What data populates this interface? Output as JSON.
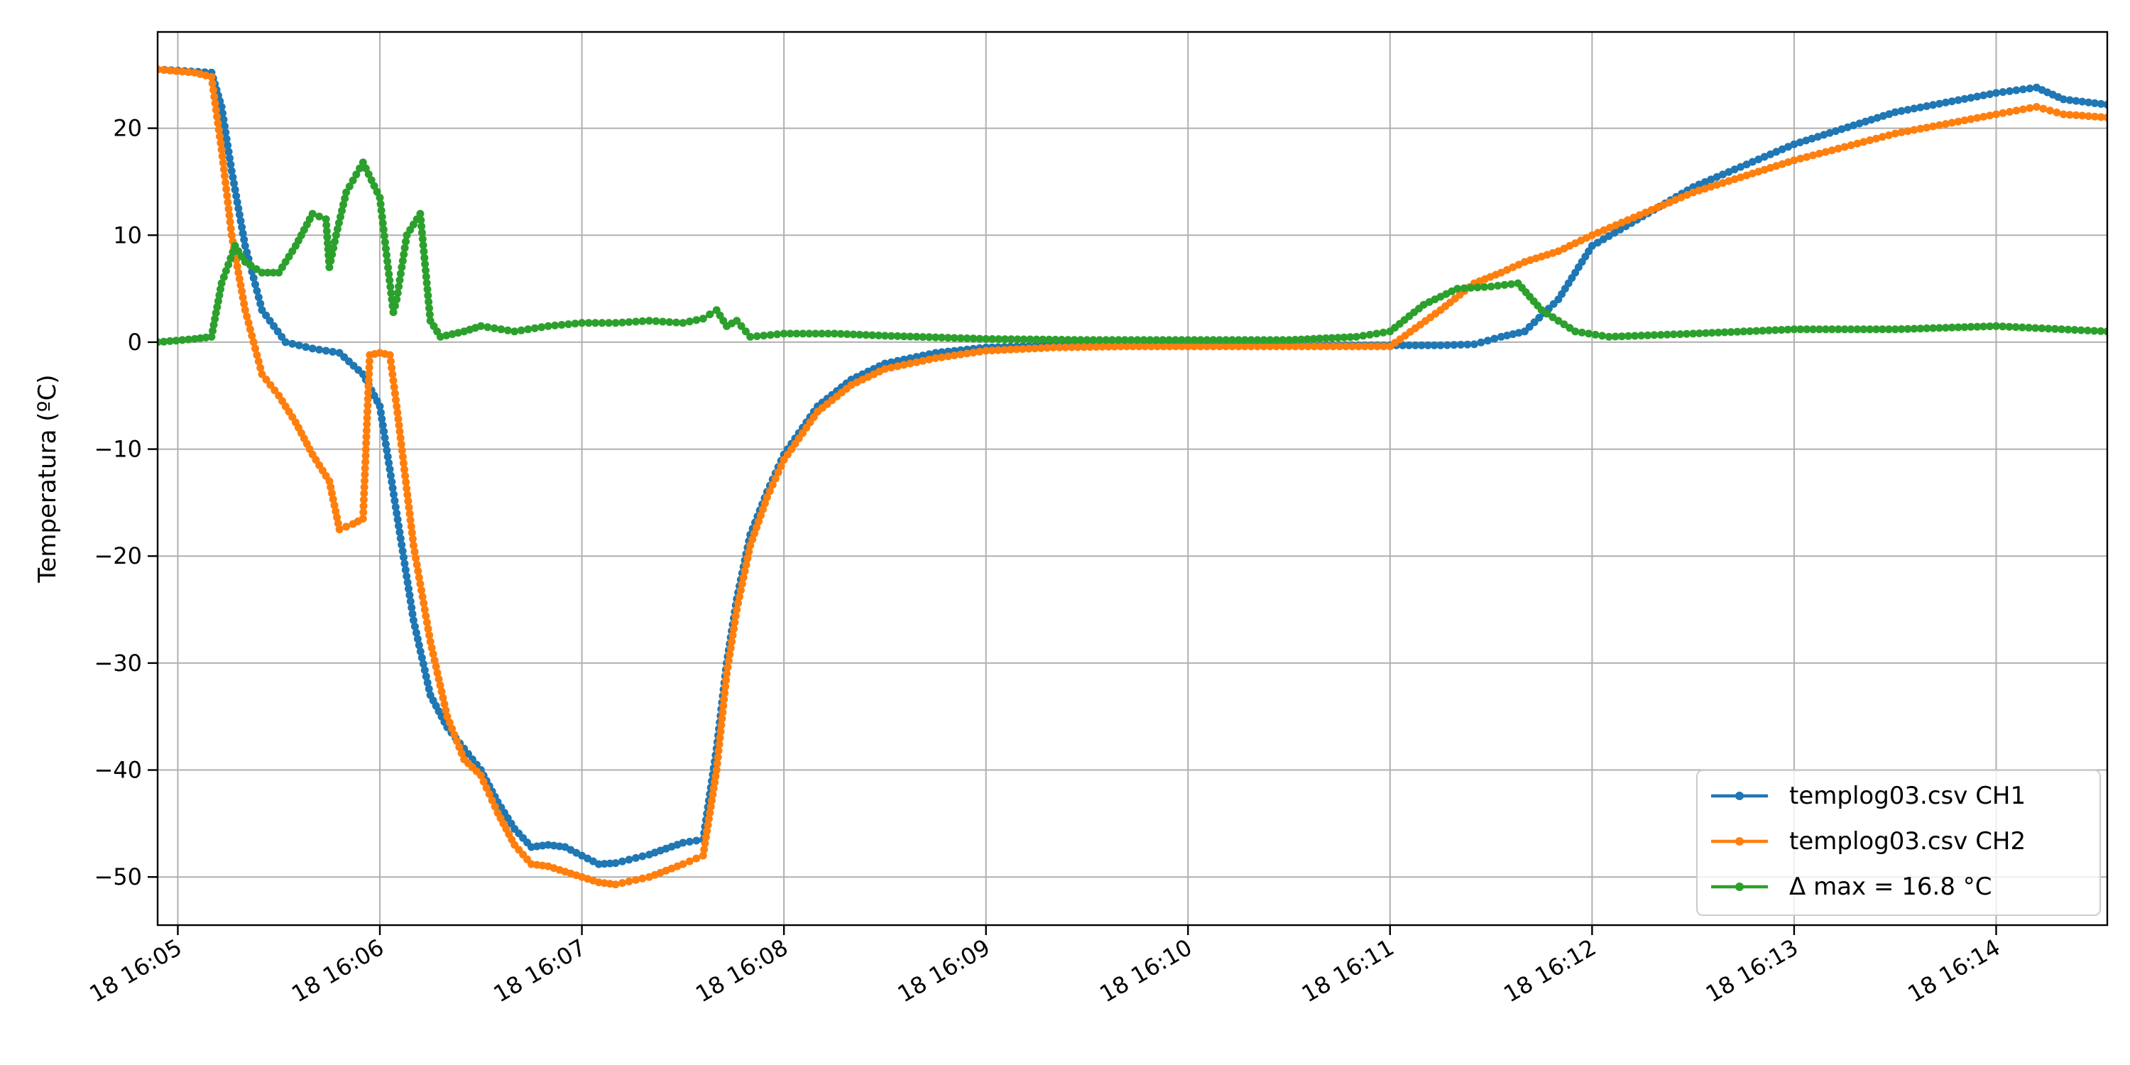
{
  "chart_data": {
    "type": "line",
    "title": "",
    "xlabel": "",
    "ylabel": "Temperatura (ºC)",
    "xlim": [
      "18 16:04:54",
      "18 16:14:33"
    ],
    "ylim": [
      -54.5,
      29
    ],
    "grid": true,
    "legend_position": "lower-right",
    "x_ticks": [
      {
        "t": "18 16:05",
        "label": "18 16:05"
      },
      {
        "t": "18 16:06",
        "label": "18 16:06"
      },
      {
        "t": "18 16:07",
        "label": "18 16:07"
      },
      {
        "t": "18 16:08",
        "label": "18 16:08"
      },
      {
        "t": "18 16:09",
        "label": "18 16:09"
      },
      {
        "t": "18 16:10",
        "label": "18 16:10"
      },
      {
        "t": "18 16:11",
        "label": "18 16:11"
      },
      {
        "t": "18 16:12",
        "label": "18 16:12"
      },
      {
        "t": "18 16:13",
        "label": "18 16:13"
      },
      {
        "t": "18 16:14",
        "label": "18 16:14"
      }
    ],
    "y_ticks": [
      {
        "v": 20,
        "label": "20"
      },
      {
        "v": 10,
        "label": "10"
      },
      {
        "v": 0,
        "label": "0"
      },
      {
        "v": -10,
        "label": "−10"
      },
      {
        "v": -20,
        "label": "−20"
      },
      {
        "v": -30,
        "label": "−30"
      },
      {
        "v": -40,
        "label": "−40"
      },
      {
        "v": -50,
        "label": "−50"
      }
    ],
    "series": [
      {
        "name": "templog03.csv CH1",
        "color": "#1f77b4",
        "x": [
          "18 16:04:54",
          "18 16:05:10",
          "18 16:05:13",
          "18 16:05:16",
          "18 16:05:20",
          "18 16:05:25",
          "18 16:05:32",
          "18 16:05:40",
          "18 16:05:48",
          "18 16:05:55",
          "18 16:06:00",
          "18 16:06:05",
          "18 16:06:10",
          "18 16:06:15",
          "18 16:06:20",
          "18 16:06:25",
          "18 16:06:30",
          "18 16:06:35",
          "18 16:06:40",
          "18 16:06:45",
          "18 16:06:50",
          "18 16:06:55",
          "18 16:07:00",
          "18 16:07:05",
          "18 16:07:10",
          "18 16:07:20",
          "18 16:07:30",
          "18 16:07:36",
          "18 16:07:40",
          "18 16:07:43",
          "18 16:07:46",
          "18 16:07:50",
          "18 16:07:55",
          "18 16:08:00",
          "18 16:08:10",
          "18 16:08:20",
          "18 16:08:30",
          "18 16:08:45",
          "18 16:09:00",
          "18 16:09:20",
          "18 16:09:40",
          "18 16:10:00",
          "18 16:10:30",
          "18 16:11:00",
          "18 16:11:15",
          "18 16:11:25",
          "18 16:11:33",
          "18 16:11:40",
          "18 16:11:50",
          "18 16:12:00",
          "18 16:12:30",
          "18 16:13:00",
          "18 16:13:30",
          "18 16:14:00",
          "18 16:14:12",
          "18 16:14:20",
          "18 16:14:33"
        ],
        "y": [
          25.5,
          25.2,
          22,
          16,
          9,
          3,
          0,
          -0.6,
          -1,
          -3,
          -6,
          -16,
          -26,
          -33,
          -36,
          -38,
          -40,
          -43,
          -45.5,
          -47.2,
          -47,
          -47.2,
          -48,
          -48.8,
          -48.7,
          -47.9,
          -46.8,
          -46.5,
          -38,
          -30,
          -24,
          -18,
          -14,
          -10.5,
          -6,
          -3.5,
          -2,
          -1,
          -0.5,
          -0.3,
          -0.3,
          -0.3,
          -0.3,
          -0.3,
          -0.3,
          -0.2,
          0.5,
          1,
          4,
          9,
          14.5,
          18.5,
          21.5,
          23.3,
          23.8,
          22.7,
          22.2
        ]
      },
      {
        "name": "templog03.csv CH2",
        "color": "#ff7f0e",
        "x": [
          "18 16:04:54",
          "18 16:05:05",
          "18 16:05:10",
          "18 16:05:13",
          "18 16:05:16",
          "18 16:05:20",
          "18 16:05:25",
          "18 16:05:30",
          "18 16:05:35",
          "18 16:05:40",
          "18 16:05:45",
          "18 16:05:48",
          "18 16:05:52",
          "18 16:05:55",
          "18 16:05:57",
          "18 16:06:00",
          "18 16:06:03",
          "18 16:06:05",
          "18 16:06:10",
          "18 16:06:15",
          "18 16:06:20",
          "18 16:06:25",
          "18 16:06:30",
          "18 16:06:35",
          "18 16:06:40",
          "18 16:06:45",
          "18 16:06:50",
          "18 16:06:55",
          "18 16:07:00",
          "18 16:07:05",
          "18 16:07:10",
          "18 16:07:20",
          "18 16:07:30",
          "18 16:07:36",
          "18 16:07:40",
          "18 16:07:43",
          "18 16:07:46",
          "18 16:07:50",
          "18 16:07:55",
          "18 16:08:00",
          "18 16:08:10",
          "18 16:08:20",
          "18 16:08:30",
          "18 16:08:45",
          "18 16:09:00",
          "18 16:09:20",
          "18 16:09:40",
          "18 16:10:00",
          "18 16:10:30",
          "18 16:11:00",
          "18 16:11:15",
          "18 16:11:25",
          "18 16:11:33",
          "18 16:11:40",
          "18 16:11:50",
          "18 16:12:00",
          "18 16:12:30",
          "18 16:13:00",
          "18 16:13:30",
          "18 16:14:00",
          "18 16:14:12",
          "18 16:14:20",
          "18 16:14:33"
        ],
        "y": [
          25.5,
          25.2,
          24.8,
          18,
          10,
          3,
          -3,
          -5,
          -7.5,
          -10.5,
          -13,
          -17.5,
          -17,
          -16.5,
          -1.2,
          -1,
          -1.2,
          -6,
          -19,
          -28,
          -35,
          -39,
          -40.5,
          -44,
          -47,
          -48.8,
          -49,
          -49.5,
          -50,
          -50.5,
          -50.7,
          -50,
          -48.8,
          -48,
          -40,
          -31,
          -25,
          -19,
          -14.5,
          -11,
          -6.5,
          -4,
          -2.5,
          -1.5,
          -0.8,
          -0.5,
          -0.4,
          -0.4,
          -0.4,
          -0.4,
          3,
          5.5,
          6.5,
          7.5,
          8.5,
          10,
          14,
          17,
          19.5,
          21.3,
          22,
          21.3,
          21
        ]
      },
      {
        "name": "Δ max = 16.8 °C",
        "color": "#2ca02c",
        "x": [
          "18 16:04:54",
          "18 16:05:05",
          "18 16:05:10",
          "18 16:05:13",
          "18 16:05:17",
          "18 16:05:20",
          "18 16:05:25",
          "18 16:05:30",
          "18 16:05:35",
          "18 16:05:40",
          "18 16:05:44",
          "18 16:05:45",
          "18 16:05:47",
          "18 16:05:50",
          "18 16:05:55",
          "18 16:06:00",
          "18 16:06:04",
          "18 16:06:05",
          "18 16:06:08",
          "18 16:06:12",
          "18 16:06:15",
          "18 16:06:18",
          "18 16:06:25",
          "18 16:06:30",
          "18 16:06:40",
          "18 16:06:50",
          "18 16:07:00",
          "18 16:07:10",
          "18 16:07:20",
          "18 16:07:30",
          "18 16:07:36",
          "18 16:07:40",
          "18 16:07:43",
          "18 16:07:46",
          "18 16:07:50",
          "18 16:08:00",
          "18 16:08:15",
          "18 16:08:30",
          "18 16:09:00",
          "18 16:09:30",
          "18 16:10:00",
          "18 16:10:30",
          "18 16:10:50",
          "18 16:11:00",
          "18 16:11:10",
          "18 16:11:20",
          "18 16:11:30",
          "18 16:11:38",
          "18 16:11:45",
          "18 16:11:55",
          "18 16:12:05",
          "18 16:12:30",
          "18 16:13:00",
          "18 16:13:30",
          "18 16:14:00",
          "18 16:14:33"
        ],
        "y": [
          0,
          0.3,
          0.5,
          5.5,
          9,
          7.5,
          6.5,
          6.5,
          9,
          12,
          11.5,
          7,
          10,
          14,
          16.8,
          13.5,
          2.8,
          4,
          10,
          12,
          2,
          0.5,
          1,
          1.5,
          1,
          1.5,
          1.8,
          1.8,
          2,
          1.8,
          2.2,
          3,
          1.5,
          2,
          0.5,
          0.8,
          0.8,
          0.6,
          0.3,
          0.2,
          0.2,
          0.2,
          0.5,
          1,
          3.5,
          5,
          5.2,
          5.5,
          3,
          1,
          0.5,
          0.8,
          1.2,
          1.2,
          1.5,
          1
        ]
      }
    ]
  }
}
